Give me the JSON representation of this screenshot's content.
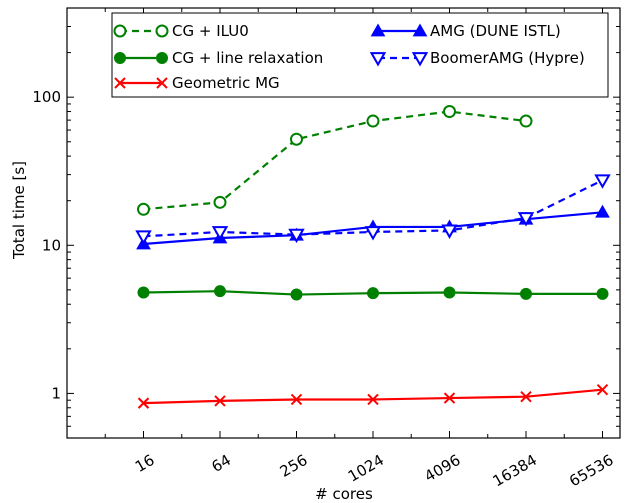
{
  "chart_data": {
    "type": "line",
    "xlabel": "# cores",
    "ylabel": "Total time [s]",
    "x_scale": "log",
    "y_scale": "log",
    "x_ticks": [
      "16",
      "64",
      "256",
      "1024",
      "4096",
      "16384",
      "65536"
    ],
    "y_ticks": [
      "1",
      "10",
      "100"
    ],
    "xlim": [
      4,
      90000
    ],
    "ylim": [
      0.5,
      400
    ],
    "grid": false,
    "legend_position": "top",
    "series": [
      {
        "name": "CG + ILU0",
        "color": "#008000",
        "line_style": "dashed",
        "marker": "circle-open",
        "x": [
          16,
          64,
          256,
          1024,
          4096,
          16384
        ],
        "y": [
          17.5,
          19.5,
          52,
          69,
          80,
          69
        ]
      },
      {
        "name": "CG + line relaxation",
        "color": "#008000",
        "line_style": "solid",
        "marker": "circle-filled",
        "x": [
          16,
          64,
          256,
          1024,
          4096,
          16384,
          65536
        ],
        "y": [
          4.8,
          4.9,
          4.65,
          4.75,
          4.8,
          4.7,
          4.7
        ]
      },
      {
        "name": "Geometric MG",
        "color": "#ff0000",
        "line_style": "solid",
        "marker": "x",
        "x": [
          16,
          64,
          256,
          1024,
          4096,
          16384,
          65536
        ],
        "y": [
          0.86,
          0.89,
          0.91,
          0.91,
          0.93,
          0.95,
          1.06
        ]
      },
      {
        "name": "AMG (DUNE ISTL)",
        "color": "#0000ff",
        "line_style": "solid",
        "marker": "triangle-up-filled",
        "x": [
          16,
          64,
          256,
          1024,
          4096,
          16384,
          65536
        ],
        "y": [
          10.2,
          11.2,
          11.7,
          13.3,
          13.3,
          15.0,
          16.7
        ]
      },
      {
        "name": "BoomerAMG (Hypre)",
        "color": "#0000ff",
        "line_style": "dashed",
        "marker": "triangle-down-open",
        "x": [
          16,
          64,
          256,
          1024,
          4096,
          16384,
          65536
        ],
        "y": [
          11.5,
          12.3,
          11.8,
          12.3,
          12.6,
          15.3,
          27.5
        ]
      }
    ]
  }
}
